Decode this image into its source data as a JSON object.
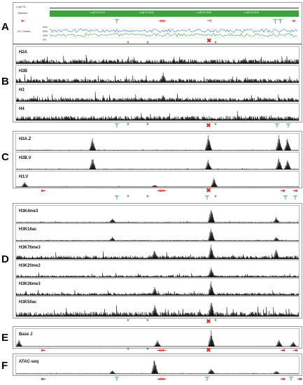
{
  "panels": {
    "A": {
      "letter": "A",
      "header_id": "LmjF.31",
      "track_labels": [
        "Telomere",
        "GC Content"
      ],
      "gc_ticks": [
        "60%",
        "50%",
        "40%",
        "0%"
      ],
      "genes": [
        "LmjF.31.0010",
        "LmjF.31.0020",
        "LmjF.31.0030",
        "LmjF.31.0040"
      ],
      "switch_labels": [
        "SSR",
        "SSR"
      ]
    },
    "B": {
      "letter": "B",
      "tracks": [
        "H2A",
        "H2B",
        "H3",
        "H4"
      ]
    },
    "C": {
      "letter": "C",
      "tracks": [
        "H2A.Z",
        "H2B.V",
        "H3.V"
      ]
    },
    "D": {
      "letter": "D",
      "tracks": [
        "H3K4me3",
        "H3K16ac",
        "H3K76me3",
        "H3K20me2",
        "H3K36me3",
        "H3K50ac"
      ]
    },
    "E": {
      "letter": "E",
      "tracks": [
        "Base J"
      ]
    },
    "F": {
      "letter": "F",
      "tracks": [
        "ATAC-seq"
      ]
    }
  },
  "colors": {
    "signal": "#111111",
    "tss_red": "#e02020",
    "tss_green": "#1aa35b",
    "gene": "#2e9e2e"
  }
}
